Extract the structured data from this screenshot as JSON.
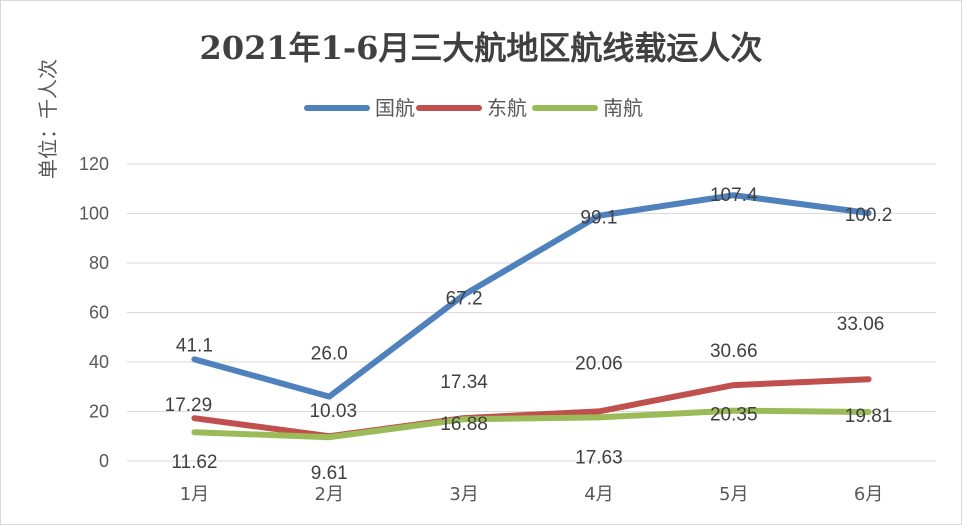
{
  "chart_data": {
    "type": "line",
    "title": "2021年1-6月三大航地区航线载运人次",
    "unit_label": "单位：千人次",
    "categories": [
      "1月",
      "2月",
      "3月",
      "4月",
      "5月",
      "6月"
    ],
    "ylim": [
      0,
      120
    ],
    "yticks": [
      0,
      20,
      40,
      60,
      80,
      100,
      120
    ],
    "grid": true,
    "legend_position": "top",
    "series": [
      {
        "name": "国航",
        "color": "#4f81bd",
        "values": [
          41.1,
          26.0,
          67.2,
          99.1,
          107.4,
          100.2
        ],
        "labels": [
          "41.1",
          "26.0",
          "67.2",
          "99.1",
          "107.4",
          "100.2"
        ]
      },
      {
        "name": "东航",
        "color": "#c0504d",
        "values": [
          17.29,
          10.03,
          17.34,
          20.06,
          30.66,
          33.06
        ],
        "labels": [
          "17.29",
          "10.03",
          "17.34",
          "20.06",
          "30.66",
          "33.06"
        ]
      },
      {
        "name": "南航",
        "color": "#9bbb59",
        "values": [
          11.62,
          9.61,
          16.88,
          17.63,
          20.35,
          19.81
        ],
        "labels": [
          "11.62",
          "9.61",
          "16.88",
          "17.63",
          "20.35",
          "19.81"
        ]
      }
    ]
  }
}
